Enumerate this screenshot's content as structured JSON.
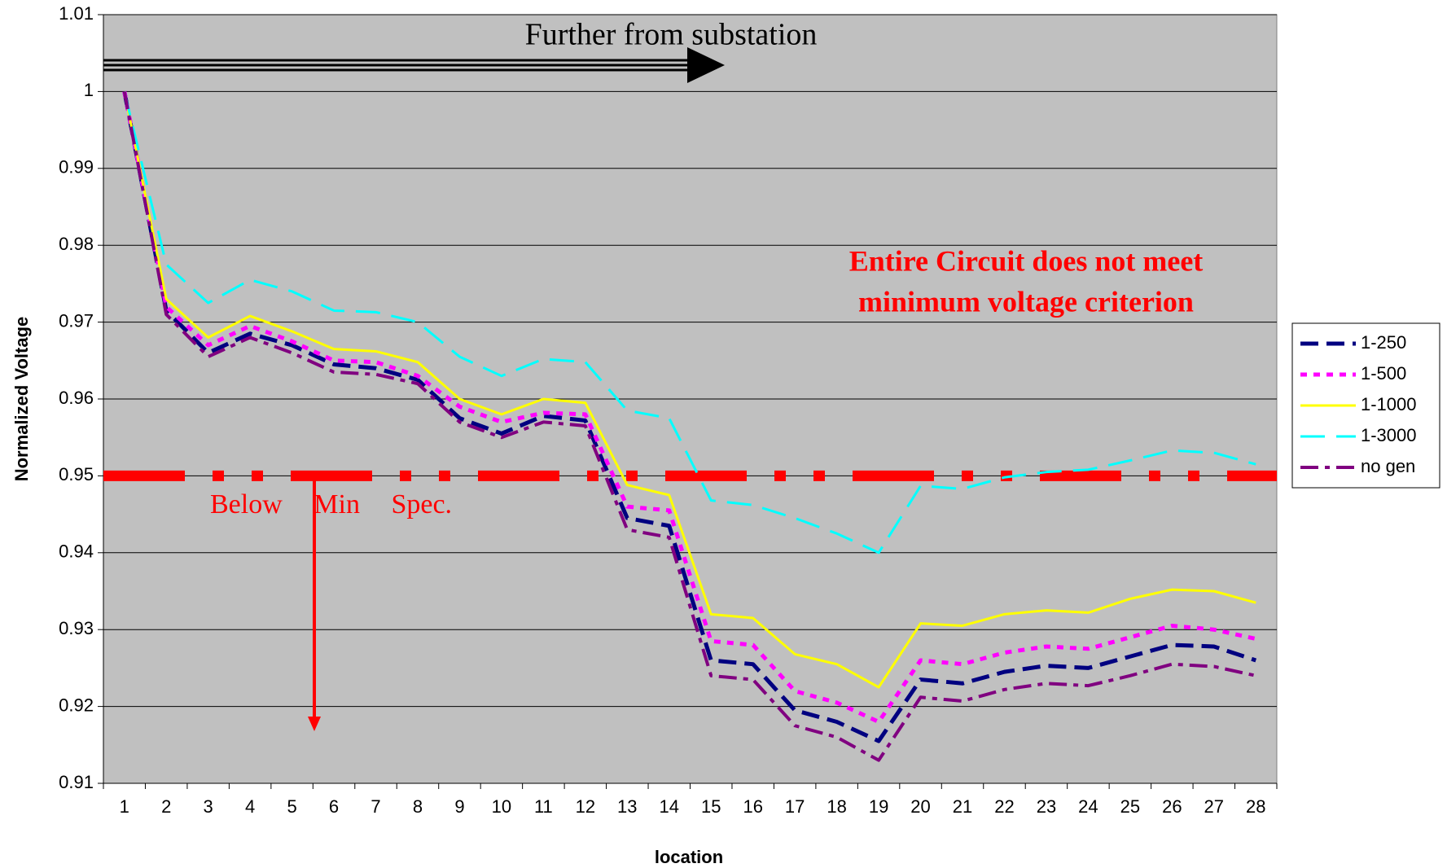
{
  "chart_data": {
    "type": "line",
    "xlabel": "location",
    "ylabel": "Normalized Voltage",
    "categories": [
      "1",
      "2",
      "3",
      "4",
      "5",
      "6",
      "7",
      "8",
      "9",
      "10",
      "11",
      "12",
      "13",
      "14",
      "15",
      "16",
      "17",
      "18",
      "19",
      "20",
      "21",
      "22",
      "23",
      "24",
      "25",
      "26",
      "27",
      "28"
    ],
    "series": [
      {
        "name": "1-250",
        "color": "#000080",
        "dash": "dashed",
        "values": [
          1,
          0.9715,
          0.966,
          0.9685,
          0.967,
          0.9645,
          0.964,
          0.9625,
          0.9575,
          0.9555,
          0.9578,
          0.9572,
          0.9445,
          0.9435,
          0.926,
          0.9255,
          0.9195,
          0.918,
          0.9155,
          0.9235,
          0.923,
          0.9245,
          0.9253,
          0.925,
          0.9265,
          0.928,
          0.9278,
          0.926
        ]
      },
      {
        "name": "1-500",
        "color": "#ff00ff",
        "dash": "dotted",
        "values": [
          1,
          0.972,
          0.967,
          0.9695,
          0.9675,
          0.965,
          0.9648,
          0.963,
          0.959,
          0.957,
          0.9582,
          0.958,
          0.946,
          0.9455,
          0.9285,
          0.928,
          0.922,
          0.9205,
          0.918,
          0.926,
          0.9255,
          0.927,
          0.9278,
          0.9275,
          0.929,
          0.9305,
          0.93,
          0.9288
        ]
      },
      {
        "name": "1-1000",
        "color": "#ffff00",
        "dash": "solid",
        "values": [
          1,
          0.973,
          0.968,
          0.9708,
          0.9688,
          0.9665,
          0.9662,
          0.9648,
          0.96,
          0.958,
          0.96,
          0.9595,
          0.9488,
          0.9475,
          0.932,
          0.9315,
          0.9268,
          0.9255,
          0.9225,
          0.9308,
          0.9305,
          0.932,
          0.9325,
          0.9322,
          0.934,
          0.9352,
          0.935,
          0.9335
        ]
      },
      {
        "name": "1-3000",
        "color": "#00ffff",
        "dash": "long-dash",
        "values": [
          1,
          0.9775,
          0.9725,
          0.9755,
          0.974,
          0.9715,
          0.9713,
          0.97,
          0.9655,
          0.963,
          0.9652,
          0.9648,
          0.9585,
          0.9575,
          0.9468,
          0.9462,
          0.9445,
          0.9425,
          0.94,
          0.9487,
          0.9483,
          0.9498,
          0.9505,
          0.9508,
          0.952,
          0.9533,
          0.953,
          0.9515
        ]
      },
      {
        "name": "no gen",
        "color": "#800080",
        "dash": "dash-dot",
        "values": [
          1,
          0.971,
          0.9655,
          0.968,
          0.966,
          0.9635,
          0.9632,
          0.962,
          0.957,
          0.955,
          0.957,
          0.9565,
          0.943,
          0.942,
          0.924,
          0.9235,
          0.9175,
          0.916,
          0.913,
          0.9212,
          0.9207,
          0.9222,
          0.923,
          0.9227,
          0.924,
          0.9255,
          0.9252,
          0.924
        ]
      }
    ],
    "threshold": 0.95,
    "threshold_color": "#ff0000",
    "annotations": [
      "Further from substation",
      "Entire Circuit does not meet",
      "minimum voltage criterion",
      "Below Min Spec."
    ],
    "ylim": [
      0.91,
      1.01
    ],
    "yticks": [
      0.91,
      0.92,
      0.93,
      0.94,
      0.95,
      0.96,
      0.97,
      0.98,
      0.99,
      1,
      1.01
    ],
    "grid": true,
    "legend": "right"
  }
}
